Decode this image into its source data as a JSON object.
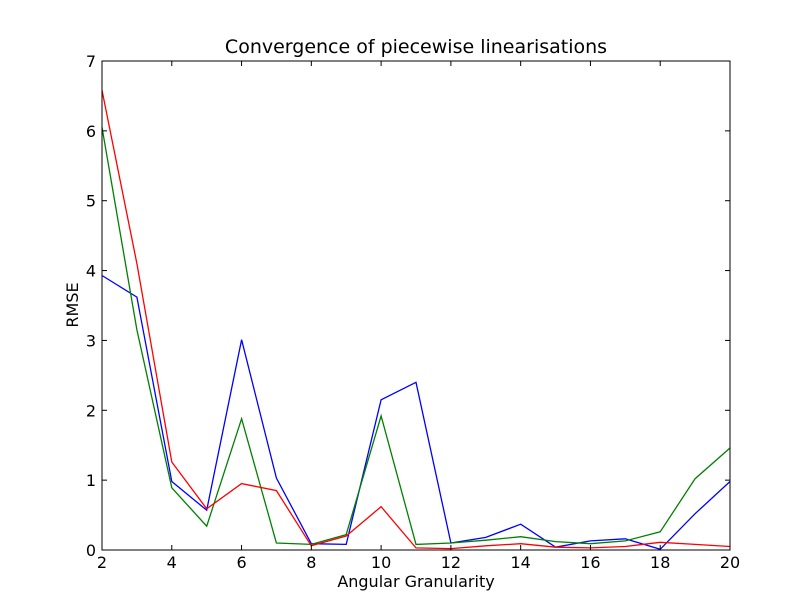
{
  "chart_data": {
    "type": "line",
    "title": "Convergence of piecewise linearisations",
    "xlabel": "Angular Granularity",
    "ylabel": "RMSE",
    "xlim": [
      2,
      20
    ],
    "ylim": [
      0,
      7
    ],
    "xticks": [
      2,
      4,
      6,
      8,
      10,
      12,
      14,
      16,
      18,
      20
    ],
    "yticks": [
      0,
      1,
      2,
      3,
      4,
      5,
      6,
      7
    ],
    "x": [
      2,
      3,
      4,
      5,
      6,
      7,
      8,
      9,
      10,
      11,
      12,
      13,
      14,
      15,
      16,
      17,
      18,
      19,
      20
    ],
    "series": [
      {
        "name": "blue",
        "color": "#0000ff",
        "values": [
          3.93,
          3.62,
          0.98,
          0.57,
          3.01,
          1.03,
          0.09,
          0.08,
          2.15,
          2.4,
          0.1,
          0.18,
          0.37,
          0.04,
          0.13,
          0.16,
          0.01,
          0.52,
          0.98
        ]
      },
      {
        "name": "green",
        "color": "#008000",
        "values": [
          6.05,
          3.15,
          0.89,
          0.34,
          1.88,
          0.1,
          0.08,
          0.22,
          1.92,
          0.08,
          0.1,
          0.14,
          0.19,
          0.12,
          0.09,
          0.13,
          0.26,
          1.02,
          1.46
        ]
      },
      {
        "name": "red",
        "color": "#ff0000",
        "values": [
          6.58,
          4.1,
          1.26,
          0.59,
          0.95,
          0.85,
          0.06,
          0.2,
          0.62,
          0.03,
          0.02,
          0.06,
          0.09,
          0.04,
          0.03,
          0.05,
          0.11,
          0.08,
          0.05
        ]
      }
    ]
  }
}
